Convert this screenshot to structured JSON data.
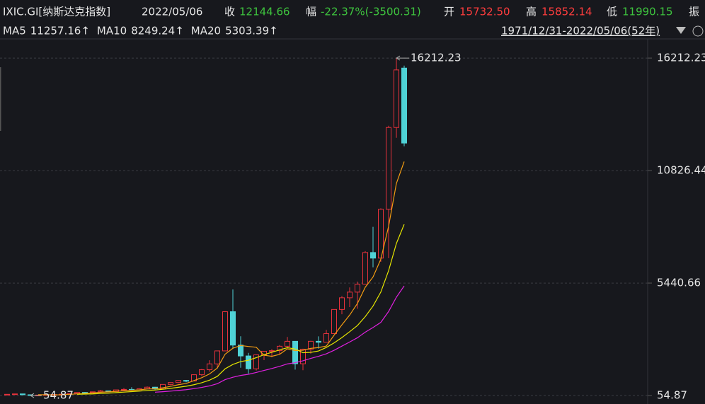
{
  "quote": {
    "symbol": "IXIC.GI[纳斯达克指数]",
    "date": "2022/05/06",
    "close_label": "收",
    "close": "12144.66",
    "change_label": "幅",
    "change": "-22.37%(-3500.31)",
    "open_label": "开",
    "open": "15732.50",
    "high_label": "高",
    "high": "15852.14",
    "low_label": "低",
    "low": "11990.15",
    "amplitude_label": "振",
    "range": "1971/12/31-2022/05/06(52年)"
  },
  "chart_data": {
    "type": "candlestick",
    "categories": [
      null,
      null,
      null,
      null,
      null,
      null,
      null,
      null,
      null,
      null,
      null,
      null,
      null,
      null,
      null,
      null,
      null,
      null,
      null,
      null,
      null,
      null,
      null,
      null,
      null,
      null,
      null,
      null,
      null,
      null,
      null,
      null,
      null,
      null,
      null,
      null,
      null,
      null,
      null,
      null,
      null,
      null,
      null,
      null,
      null,
      null,
      null,
      null,
      null,
      null,
      null,
      null
    ],
    "open": [
      89.6,
      114.12,
      133.73,
      92.19,
      59.82,
      77.62,
      97.88,
      105.05,
      117.98,
      151.14,
      202.34,
      195.84,
      232.41,
      278.6,
      247.35,
      324.93,
      348.83,
      330.47,
      381.38,
      454.82,
      373.84,
      586.34,
      676.95,
      776.8,
      751.96,
      1052.13,
      1291.03,
      1570.35,
      2192.69,
      4069.31,
      2470.52,
      1950.4,
      1335.51,
      2003.37,
      2175.44,
      2205.32,
      2415.29,
      2652.28,
      1577.03,
      2269.15,
      2652.87,
      2605.15,
      3019.51,
      4176.59,
      4736.05,
      5007.41,
      5383.12,
      6903.39,
      6635.28,
      8972.6,
      12888.28,
      15732.5
    ],
    "high": [
      114.1,
      135.2,
      136.8,
      96.5,
      88,
      97.9,
      105.1,
      139.3,
      152.3,
      208.2,
      223.5,
      240.7,
      328.9,
      287.9,
      325.2,
      411.2,
      456.3,
      397.5,
      487.6,
      470.3,
      586.5,
      676.95,
      787.4,
      803.9,
      1069.8,
      1328.5,
      1745.9,
      2200.6,
      4090.6,
      5132.52,
      2892.4,
      2098.9,
      2015.2,
      2185.6,
      2278.2,
      2470.9,
      2861.5,
      2661.5,
      2295.8,
      2675.3,
      2887.8,
      3196.9,
      4177.7,
      4814.9,
      5231.9,
      5512.4,
      6969.7,
      8133.3,
      9022.4,
      12973.3,
      16212.23,
      15852.14
    ],
    "low": [
      87,
      113.7,
      88.7,
      54.87,
      59.6,
      77.4,
      93.7,
      99.1,
      117.8,
      124.1,
      175,
      159.1,
      230.6,
      225.3,
      245.8,
      323,
      288.5,
      329,
      376.9,
      322.9,
      352.9,
      545.9,
      645.9,
      691.1,
      740.5,
      978.2,
      1194,
      1357.1,
      2190.2,
      2288.2,
      1387.1,
      1108.5,
      1253.2,
      1750.8,
      1889.8,
      2012.8,
      2331.6,
      1295.5,
      1265.5,
      2061.1,
      2298.9,
      2603.2,
      3019.5,
      3946,
      4292.1,
      4209.8,
      5371.9,
      6190.2,
      6457.1,
      6631.4,
      12397.1,
      11990.15
    ],
    "close": [
      114.12,
      133.73,
      92.19,
      59.82,
      77.62,
      97.88,
      105.05,
      117.98,
      151.14,
      202.34,
      195.84,
      232.41,
      278.6,
      247.35,
      324.93,
      348.83,
      330.47,
      381.38,
      454.82,
      373.84,
      586.34,
      676.95,
      776.8,
      751.96,
      1052.13,
      1291.03,
      1570.35,
      2192.69,
      4069.31,
      2470.52,
      1950.4,
      1335.51,
      2003.37,
      2175.44,
      2205.32,
      2415.29,
      2652.28,
      1577.03,
      2269.15,
      2652.87,
      2605.15,
      3019.51,
      4176.59,
      4736.05,
      5007.41,
      5383.12,
      6903.39,
      6635.28,
      8972.6,
      12888.28,
      15644.97,
      12144.66
    ],
    "up_color": "#e8323c",
    "down_color": "#4fd2d6",
    "series": [
      {
        "name": "MA5",
        "color": "#f39c12",
        "legend_value": "11257.16↑",
        "values": [
          null,
          null,
          null,
          null,
          95.6,
          92.4,
          86.6,
          91.8,
          110,
          134.8,
          154.4,
          179.8,
          212,
          231.2,
          255.8,
          286.4,
          306,
          326.4,
          368,
          377.8,
          425.2,
          494.6,
          573.8,
          633.2,
          768.8,
          909.8,
          1088.4,
          1371.6,
          2035,
          2318.8,
          2450.6,
          2403.8,
          2365.8,
          1987,
          1933.8,
          2026.8,
          2290,
          2204.8,
          2223.6,
          2313.2,
          2351.2,
          2424.8,
          2944.8,
          3438.2,
          3909,
          4464.6,
          5241.2,
          5732.8,
          6580.2,
          8156.4,
          10208.8,
          11257.16
        ]
      },
      {
        "name": "MA10",
        "color": "#e6e600",
        "legend_value": "8249.24↑",
        "values": [
          null,
          null,
          null,
          null,
          null,
          null,
          null,
          null,
          null,
          115.2,
          123.4,
          133.2,
          151.9,
          170.6,
          195.3,
          220.4,
          242.9,
          269.2,
          299.6,
          316.8,
          355.8,
          400.3,
          450.1,
          500.6,
          573.3,
          667.5,
          791.5,
          972.7,
          1334.1,
          1543.8,
          1680.2,
          1746.1,
          1868.7,
          2011,
          2126.3,
          2238.7,
          2346.9,
          2285.3,
          2105.3,
          2123.5,
          2189,
          2357.4,
          2574.8,
          2830.9,
          3111.1,
          3407.9,
          3833,
          4338.8,
          5009.2,
          6032.7,
          7336.7,
          8249.24
        ]
      },
      {
        "name": "MA20",
        "color": "#e020e0",
        "legend_value": "5303.39↑",
        "values": [
          null,
          null,
          null,
          null,
          null,
          null,
          null,
          null,
          null,
          null,
          null,
          null,
          null,
          null,
          null,
          null,
          null,
          null,
          null,
          216,
          239.6,
          266.8,
          301,
          335.6,
          384.3,
          444,
          517.2,
          621,
          816.9,
          930.3,
          1018,
          1073.2,
          1159.4,
          1255.8,
          1349.8,
          1453.1,
          1569.2,
          1629,
          1719.7,
          1833.7,
          1934.6,
          2051.8,
          2221.8,
          2421,
          2618.7,
          2823.3,
          3090,
          3312,
          3557.3,
          4078.1,
          4762.9,
          5303.39
        ]
      }
    ],
    "ylim": [
      -350,
      17130
    ],
    "yticks": [
      16212.23,
      10826.44,
      5440.66,
      54.87
    ],
    "grid": true,
    "max_marker": 16212.23,
    "min_marker": 54.87,
    "max_color": "#e8323c",
    "min_color": "#3ec43e"
  }
}
